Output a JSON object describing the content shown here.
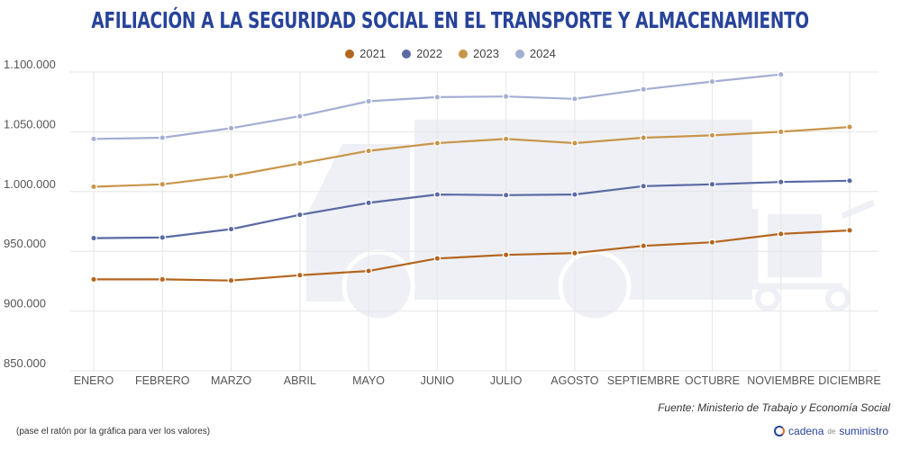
{
  "header": {
    "title": "AFILIACIÓN A LA SEGURIDAD SOCIAL EN EL TRANSPORTE Y ALMACENAMIENTO"
  },
  "footer": {
    "source": "Fuente: Ministerio de Trabajo y Economía Social",
    "hint": "(pase el ratón por la gráfica para ver los valores)",
    "brand_main": "cadena",
    "brand_small": "de",
    "brand_end": "suministro"
  },
  "colors": {
    "title": "#27439a",
    "grid": "#e6e6e6",
    "watermark": "#eef0f6"
  },
  "chart_data": {
    "type": "line",
    "title": "AFILIACIÓN A LA SEGURIDAD SOCIAL EN EL TRANSPORTE Y ALMACENAMIENTO",
    "categories": [
      "ENERO",
      "FEBRERO",
      "MARZO",
      "ABRIL",
      "MAYO",
      "JUNIO",
      "JULIO",
      "AGOSTO",
      "SEPTIEMBRE",
      "OCTUBRE",
      "NOVIEMBRE",
      "DICIEMBRE"
    ],
    "ylim": [
      850000,
      1100000
    ],
    "yticks": [
      850000,
      900000,
      950000,
      1000000,
      1050000,
      1100000
    ],
    "ytick_labels": [
      "850.000",
      "900.000",
      "950.000",
      "1.000.000",
      "1.050.000",
      "1.100.000"
    ],
    "grid": true,
    "legend_position": "top-center",
    "series": [
      {
        "name": "2021",
        "color": "#b5651d",
        "values": [
          926500,
          926500,
          925500,
          930000,
          933500,
          944000,
          947000,
          948500,
          954500,
          957500,
          964500,
          967500
        ]
      },
      {
        "name": "2022",
        "color": "#5a6aa3",
        "values": [
          961000,
          961500,
          968500,
          980500,
          990500,
          997500,
          997000,
          997500,
          1004500,
          1006000,
          1008000,
          1009000
        ]
      },
      {
        "name": "2023",
        "color": "#c9954a",
        "values": [
          1004000,
          1006000,
          1013000,
          1023500,
          1034000,
          1040500,
          1044000,
          1040500,
          1045000,
          1047000,
          1050000,
          1054000
        ]
      },
      {
        "name": "2024",
        "color": "#a3aed3",
        "values": [
          1044000,
          1045000,
          1053000,
          1063000,
          1075500,
          1079000,
          1079500,
          1077500,
          1085500,
          1092000,
          1098000,
          null
        ]
      }
    ]
  }
}
